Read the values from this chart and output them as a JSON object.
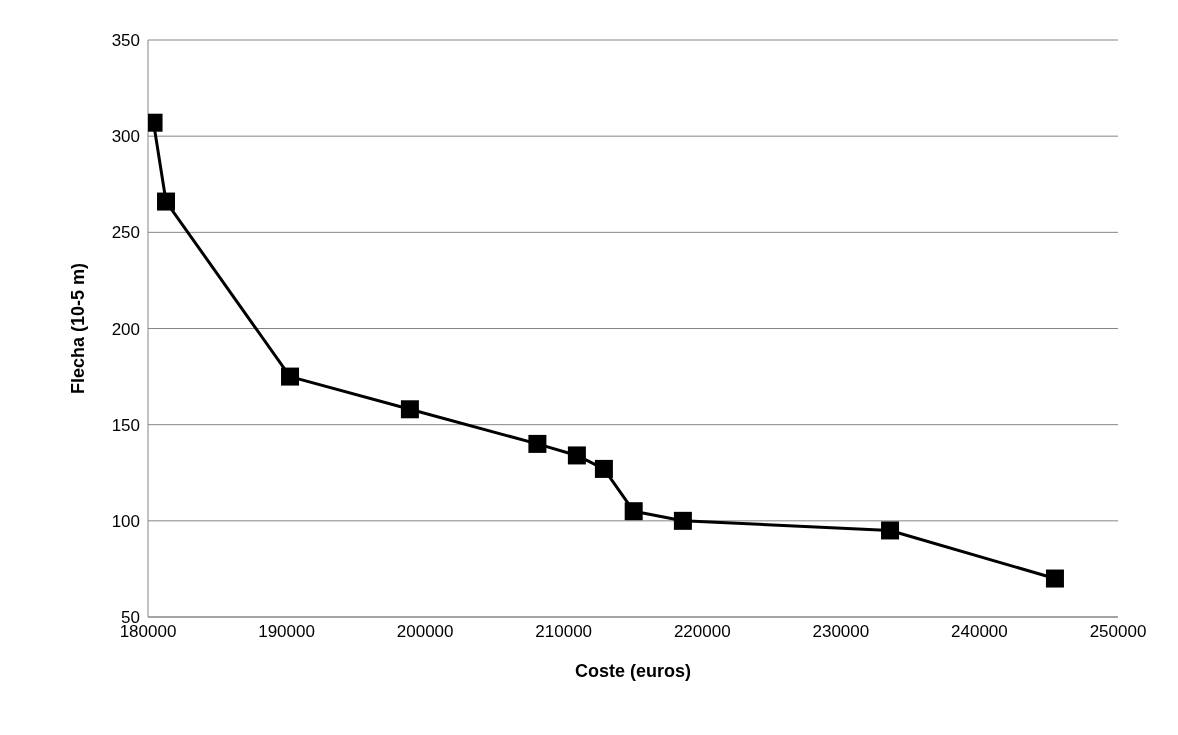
{
  "chart_data": {
    "type": "line",
    "xlabel": "Coste (euros)",
    "ylabel": "Flecha  (10-5 m)",
    "x": [
      180400,
      181300,
      190250,
      198900,
      208100,
      210950,
      212900,
      215050,
      218600,
      233550,
      245450
    ],
    "series": [
      {
        "color": "#000000",
        "values": [
          307,
          266,
          175,
          158,
          140,
          134,
          127,
          105,
          100,
          95,
          70
        ]
      }
    ],
    "xlim": [
      180000,
      250000
    ],
    "xticks": [
      180000,
      190000,
      200000,
      210000,
      220000,
      230000,
      240000,
      250000
    ],
    "ylim": [
      50,
      350
    ],
    "yticks": [
      50,
      100,
      150,
      200,
      250,
      300,
      350
    ],
    "grid": "y",
    "marker": "square",
    "line_style": "solid"
  }
}
